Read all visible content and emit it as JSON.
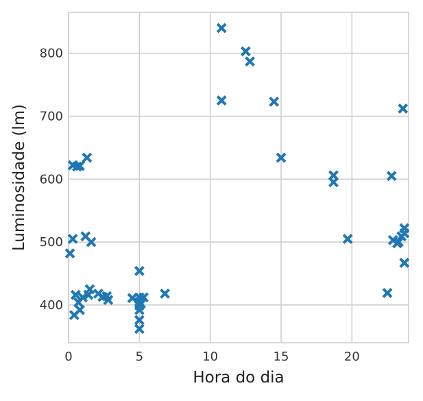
{
  "chart_data": {
    "type": "scatter",
    "title": "",
    "xlabel": "Hora do dia",
    "ylabel": "Luminosidade (lm)",
    "xlim": [
      0,
      24
    ],
    "ylim": [
      340,
      865
    ],
    "xticks": [
      0,
      5,
      10,
      15,
      20
    ],
    "yticks": [
      400,
      500,
      600,
      700,
      800
    ],
    "grid": true,
    "legend": "none",
    "marker": "x",
    "color": "#1f77b4",
    "x": [
      0.1,
      0.3,
      0.3,
      0.4,
      0.5,
      0.6,
      0.7,
      0.8,
      0.8,
      1.0,
      1.2,
      1.3,
      1.4,
      1.5,
      1.6,
      2.1,
      2.4,
      2.7,
      2.8,
      4.5,
      5.0,
      5.0,
      5.0,
      5.0,
      5.0,
      5.0,
      5.0,
      5.1,
      5.3,
      6.8,
      10.8,
      10.8,
      12.5,
      12.8,
      14.5,
      15.0,
      18.7,
      18.7,
      19.7,
      22.5,
      22.8,
      22.9,
      23.2,
      23.3,
      23.5,
      23.6,
      23.7,
      23.7,
      23.7
    ],
    "y": [
      482,
      505,
      622,
      384,
      416,
      620,
      404,
      392,
      621,
      412,
      509,
      634,
      416,
      425,
      500,
      418,
      413,
      414,
      408,
      411,
      454,
      412,
      405,
      399,
      392,
      376,
      362,
      402,
      412,
      418,
      840,
      725,
      803,
      787,
      723,
      634,
      606,
      595,
      505,
      419,
      605,
      503,
      498,
      500,
      509,
      712,
      514,
      522,
      467
    ]
  }
}
